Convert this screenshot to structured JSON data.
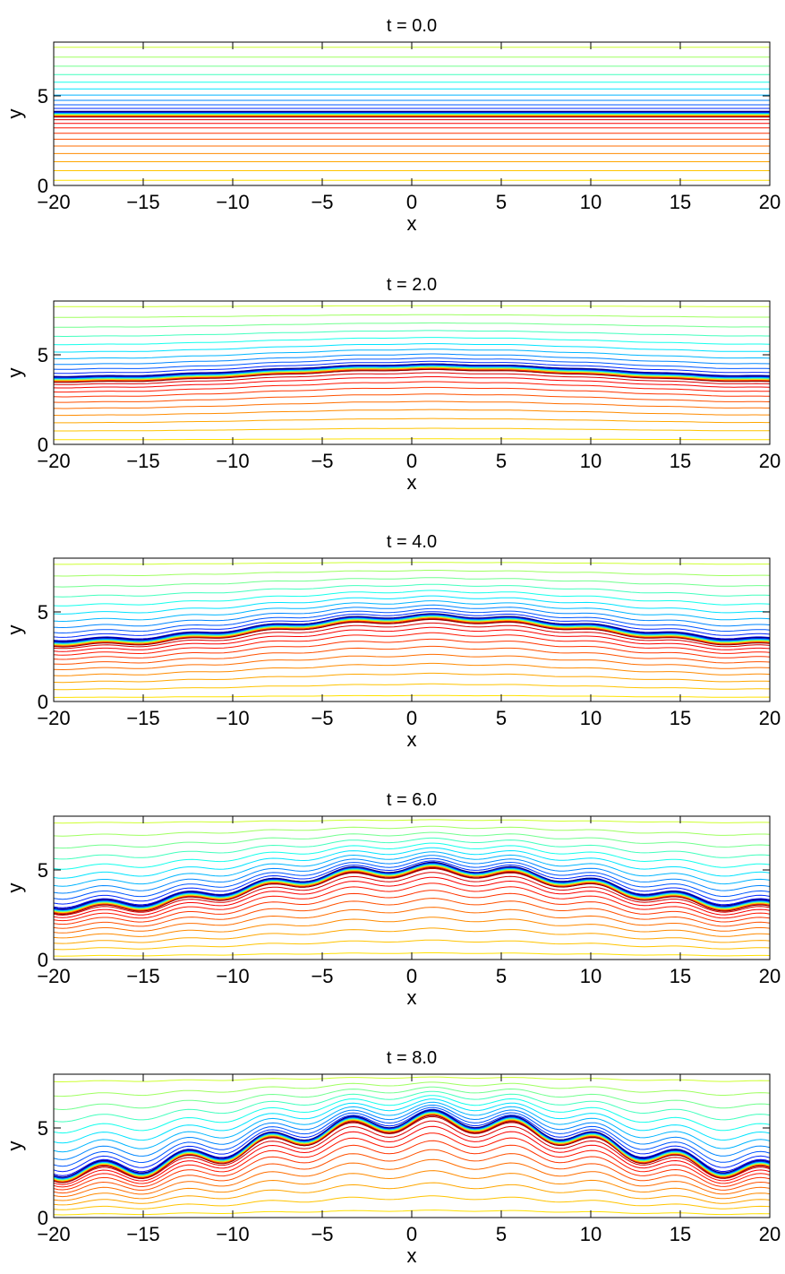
{
  "chart_data": [
    {
      "type": "contour",
      "title": "t = 0.0",
      "xlabel": "x",
      "ylabel": "y",
      "xlim": [
        -20,
        20
      ],
      "ylim": [
        0,
        8
      ],
      "xticks": [
        -20,
        -15,
        -10,
        -5,
        0,
        5,
        10,
        15,
        20
      ],
      "xtick_labels": [
        "−20",
        "−15",
        "−10",
        "−5",
        "0",
        "5",
        "10",
        "15",
        "20"
      ],
      "yticks": [
        0,
        5
      ],
      "ytick_labels": [
        "0",
        "5"
      ],
      "interface_y": 4.0,
      "interface_amp": 0.0,
      "billow_amp": 0.0,
      "colormap": "jet"
    },
    {
      "type": "contour",
      "title": "t = 2.0",
      "xlabel": "x",
      "ylabel": "y",
      "xlim": [
        -20,
        20
      ],
      "ylim": [
        0,
        8
      ],
      "xticks": [
        -20,
        -15,
        -10,
        -5,
        0,
        5,
        10,
        15,
        20
      ],
      "xtick_labels": [
        "−20",
        "−15",
        "−10",
        "−5",
        "0",
        "5",
        "10",
        "15",
        "20"
      ],
      "yticks": [
        0,
        5
      ],
      "ytick_labels": [
        "0",
        "5"
      ],
      "interface_y": 4.0,
      "interface_amp": 0.45,
      "billow_amp": 0.05,
      "colormap": "jet"
    },
    {
      "type": "contour",
      "title": "t = 4.0",
      "xlabel": "x",
      "ylabel": "y",
      "xlim": [
        -20,
        20
      ],
      "ylim": [
        0,
        8
      ],
      "xticks": [
        -20,
        -15,
        -10,
        -5,
        0,
        5,
        10,
        15,
        20
      ],
      "xtick_labels": [
        "−20",
        "−15",
        "−10",
        "−5",
        "0",
        "5",
        "10",
        "15",
        "20"
      ],
      "yticks": [
        0,
        5
      ],
      "ytick_labels": [
        "0",
        "5"
      ],
      "interface_y": 4.0,
      "interface_amp": 0.9,
      "billow_amp": 0.2,
      "colormap": "jet"
    },
    {
      "type": "contour",
      "title": "t = 6.0",
      "xlabel": "x",
      "ylabel": "y",
      "xlim": [
        -20,
        20
      ],
      "ylim": [
        0,
        8
      ],
      "xticks": [
        -20,
        -15,
        -10,
        -5,
        0,
        5,
        10,
        15,
        20
      ],
      "xtick_labels": [
        "−20",
        "−15",
        "−10",
        "−5",
        "0",
        "5",
        "10",
        "15",
        "20"
      ],
      "yticks": [
        0,
        5
      ],
      "ytick_labels": [
        "0",
        "5"
      ],
      "interface_y": 4.0,
      "interface_amp": 1.4,
      "billow_amp": 0.5,
      "colormap": "jet"
    },
    {
      "type": "contour",
      "title": "t = 8.0",
      "xlabel": "x",
      "ylabel": "y",
      "xlim": [
        -20,
        20
      ],
      "ylim": [
        0,
        8
      ],
      "xticks": [
        -20,
        -15,
        -10,
        -5,
        0,
        5,
        10,
        15,
        20
      ],
      "xtick_labels": [
        "−20",
        "−15",
        "−10",
        "−5",
        "0",
        "5",
        "10",
        "15",
        "20"
      ],
      "yticks": [
        0,
        5
      ],
      "ytick_labels": [
        "0",
        "5"
      ],
      "interface_y": 4.0,
      "interface_amp": 1.9,
      "billow_amp": 0.9,
      "colormap": "jet"
    }
  ]
}
